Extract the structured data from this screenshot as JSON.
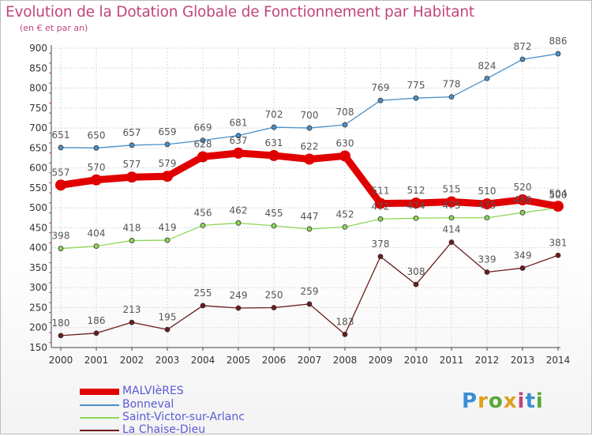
{
  "header": {
    "title": "Evolution de la Dotation Globale de Fonctionnement par Habitant",
    "subtitle": "(en € et par an)"
  },
  "logo": {
    "text": "Proxiti"
  },
  "colors": {
    "title": "#c0457a",
    "legend_text": "#5b5bd6",
    "grid": "#d8d8d8",
    "axis": "#444444"
  },
  "chart_data": {
    "type": "line",
    "title": "Evolution de la Dotation Globale de Fonctionnement par Habitant",
    "subtitle": "(en € et par an)",
    "x": [
      "2000",
      "2001",
      "2002",
      "2003",
      "2004",
      "2005",
      "2006",
      "2007",
      "2008",
      "2009",
      "2010",
      "2011",
      "2012",
      "2013",
      "2014"
    ],
    "y_ticks": [
      150,
      200,
      250,
      300,
      350,
      400,
      450,
      500,
      550,
      600,
      650,
      700,
      750,
      800,
      850,
      900
    ],
    "ylim": [
      150,
      900
    ],
    "grid": true,
    "legend_position": "bottom-left",
    "series": [
      {
        "name": "MALVIèRES",
        "color": "#e00000",
        "emphasis": true,
        "values": [
          557,
          570,
          577,
          579,
          628,
          637,
          631,
          622,
          630,
          511,
          512,
          515,
          510,
          520,
          504
        ]
      },
      {
        "name": "Bonneval",
        "color": "#4a90c8",
        "values": [
          651,
          650,
          657,
          659,
          669,
          681,
          702,
          700,
          708,
          769,
          775,
          778,
          824,
          872,
          886
        ]
      },
      {
        "name": "Saint-Victor-sur-Arlanc",
        "color": "#8ed654",
        "values": [
          398,
          404,
          418,
          419,
          456,
          462,
          455,
          447,
          452,
          472,
          474,
          475,
          475,
          488,
          500
        ]
      },
      {
        "name": "La Chaise-Dieu",
        "color": "#6b1b1b",
        "values": [
          180,
          186,
          213,
          195,
          255,
          249,
          250,
          259,
          183,
          378,
          308,
          414,
          339,
          349,
          381
        ]
      }
    ]
  }
}
